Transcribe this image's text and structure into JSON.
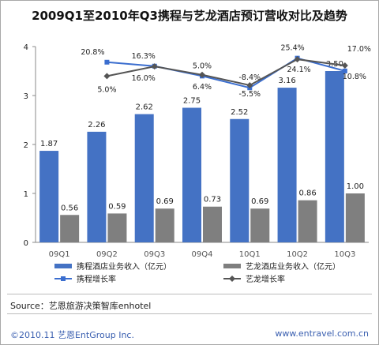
{
  "title": "2009Q1至2010年Q3携程与艺龙酒店预订营收对比及趋势",
  "source": "Source：艺恩旅游决策智库enhotel",
  "footer": {
    "copyright": "©2010.11 艺恩EntGroup Inc.",
    "website": "www.entravel.com.cn"
  },
  "chart_data": {
    "type": "bar",
    "categories": [
      "09Q1",
      "09Q2",
      "09Q3",
      "09Q4",
      "10Q1",
      "10Q2",
      "10Q3"
    ],
    "ylim": [
      0,
      4
    ],
    "yticks": [
      "0",
      "1",
      "2",
      "3",
      "4"
    ],
    "series": [
      {
        "name": "携程酒店业务收入（亿元）",
        "kind": "bar",
        "color": "#4472c4",
        "values": [
          1.87,
          2.26,
          2.62,
          2.75,
          2.52,
          3.16,
          3.5
        ],
        "labels": [
          "1.87",
          "2.26",
          "2.62",
          "2.75",
          "2.52",
          "3.16",
          "3.50"
        ]
      },
      {
        "name": "艺龙酒店业务收入（亿元）",
        "kind": "bar",
        "color": "#7f7f7f",
        "values": [
          0.56,
          0.59,
          0.69,
          0.73,
          0.69,
          0.86,
          1.0
        ],
        "labels": [
          "0.56",
          "0.59",
          "0.69",
          "0.73",
          "0.69",
          "0.86",
          "1.00"
        ]
      },
      {
        "name": "携程增长率",
        "kind": "line",
        "color": "#3b6ecf",
        "marker": "square",
        "values_percent": [
          20.8,
          16.3,
          5.0,
          -8.4,
          25.4,
          10.8
        ],
        "categories": [
          "09Q2",
          "09Q3",
          "09Q4",
          "10Q1",
          "10Q2",
          "10Q3"
        ],
        "labels": [
          "20.8%",
          "16.3%",
          "5.0%",
          "-8.4%",
          "25.4%",
          "10.8%"
        ]
      },
      {
        "name": "艺龙增长率",
        "kind": "line",
        "color": "#555555",
        "marker": "diamond",
        "values_percent": [
          5.0,
          16.0,
          6.4,
          -5.5,
          24.1,
          17.0
        ],
        "categories": [
          "09Q2",
          "09Q3",
          "09Q4",
          "10Q1",
          "10Q2",
          "10Q3"
        ],
        "labels": [
          "5.0%",
          "16.0%",
          "6.4%",
          "-5.5%",
          "24.1%",
          "17.0%"
        ]
      }
    ],
    "legend": "bottom",
    "grid": false
  }
}
